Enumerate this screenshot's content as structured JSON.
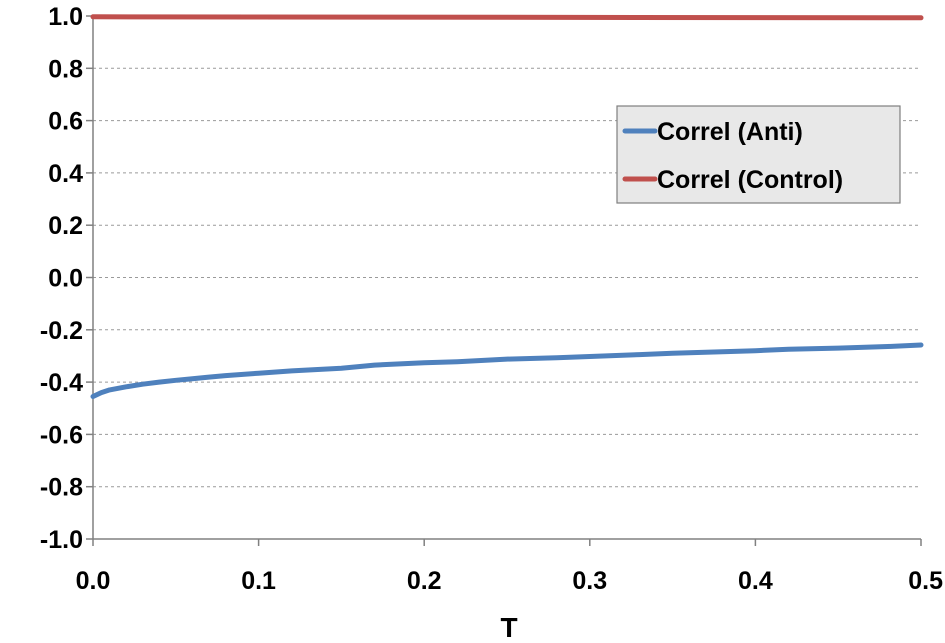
{
  "chart_data": {
    "type": "line",
    "xlabel": "T",
    "ylabel": "",
    "xlim": [
      0,
      0.5
    ],
    "ylim": [
      -1.0,
      1.0
    ],
    "x_ticks": [
      "0.0",
      "0.1",
      "0.2",
      "0.3",
      "0.4",
      "0.5"
    ],
    "y_ticks": [
      "1.0",
      "0.8",
      "0.6",
      "0.4",
      "0.2",
      "0.0",
      "-0.2",
      "-0.4",
      "-0.6",
      "-0.8",
      "-1.0"
    ],
    "grid": "horizontal-dashed",
    "legend_position": "upper-right",
    "series": [
      {
        "name": "Correl (Anti)",
        "color": "#4f81bd",
        "x": [
          0.0,
          0.005,
          0.01,
          0.02,
          0.03,
          0.04,
          0.05,
          0.06,
          0.07,
          0.08,
          0.1,
          0.12,
          0.15,
          0.17,
          0.2,
          0.22,
          0.25,
          0.28,
          0.3,
          0.33,
          0.35,
          0.38,
          0.4,
          0.42,
          0.45,
          0.48,
          0.5
        ],
        "y": [
          -0.455,
          -0.44,
          -0.43,
          -0.418,
          -0.408,
          -0.4,
          -0.393,
          -0.387,
          -0.381,
          -0.375,
          -0.366,
          -0.357,
          -0.347,
          -0.335,
          -0.326,
          -0.322,
          -0.312,
          -0.307,
          -0.302,
          -0.295,
          -0.29,
          -0.284,
          -0.28,
          -0.274,
          -0.27,
          -0.264,
          -0.258
        ]
      },
      {
        "name": "Correl (Control)",
        "color": "#c0504d",
        "x": [
          0.0,
          0.5
        ],
        "y": [
          0.997,
          0.993
        ]
      }
    ]
  }
}
